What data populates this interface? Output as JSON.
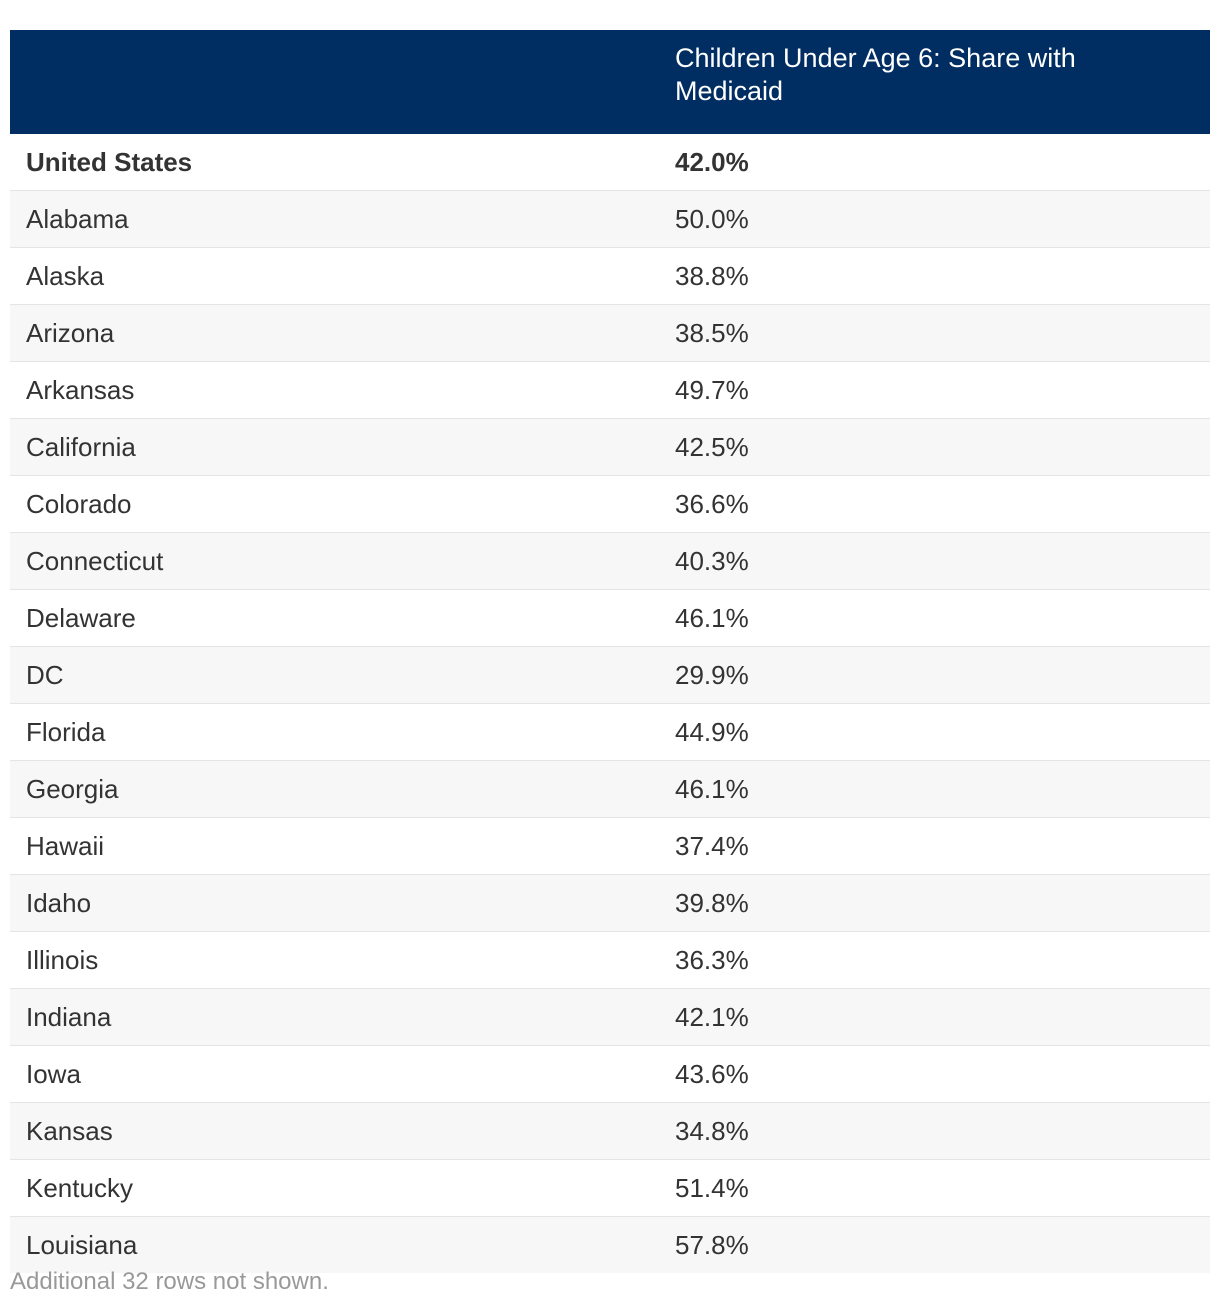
{
  "chart_data": {
    "type": "table",
    "columns": [
      "",
      "Children Under Age 6: Share with Medicaid"
    ],
    "rows": [
      {
        "location": "United States",
        "value": "42.0%",
        "total": true
      },
      {
        "location": "Alabama",
        "value": "50.0%"
      },
      {
        "location": "Alaska",
        "value": "38.8%"
      },
      {
        "location": "Arizona",
        "value": "38.5%"
      },
      {
        "location": "Arkansas",
        "value": "49.7%"
      },
      {
        "location": "California",
        "value": "42.5%"
      },
      {
        "location": "Colorado",
        "value": "36.6%"
      },
      {
        "location": "Connecticut",
        "value": "40.3%"
      },
      {
        "location": "Delaware",
        "value": "46.1%"
      },
      {
        "location": "DC",
        "value": "29.9%"
      },
      {
        "location": "Florida",
        "value": "44.9%"
      },
      {
        "location": "Georgia",
        "value": "46.1%"
      },
      {
        "location": "Hawaii",
        "value": "37.4%"
      },
      {
        "location": "Idaho",
        "value": "39.8%"
      },
      {
        "location": "Illinois",
        "value": "36.3%"
      },
      {
        "location": "Indiana",
        "value": "42.1%"
      },
      {
        "location": "Iowa",
        "value": "43.6%"
      },
      {
        "location": "Kansas",
        "value": "34.8%"
      },
      {
        "location": "Kentucky",
        "value": "51.4%"
      },
      {
        "location": "Louisiana",
        "value": "57.8%"
      }
    ],
    "footnote": "Additional 32 rows not shown."
  },
  "colors": {
    "header_background": "#002d62",
    "header_text": "#ffffff",
    "stripe": "#f7f7f7",
    "footnote_text": "#999999"
  }
}
